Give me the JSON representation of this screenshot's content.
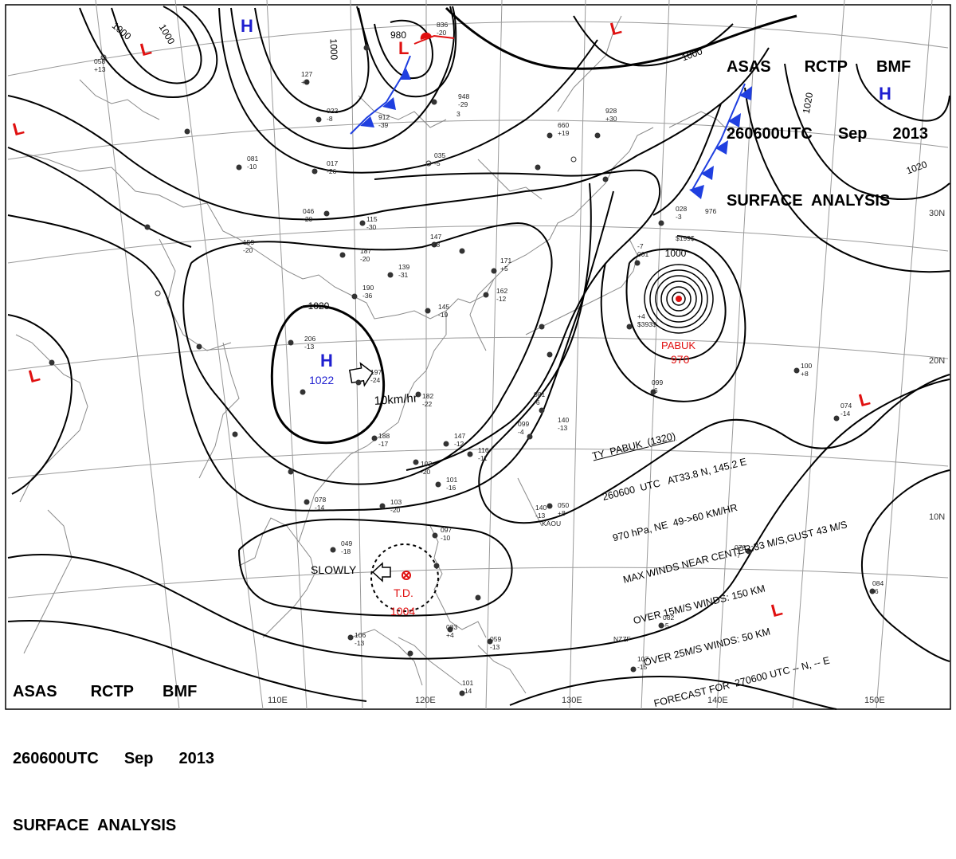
{
  "header_top": {
    "line1": [
      "ASAS",
      "RCTP",
      "BMF"
    ],
    "line2": [
      "260600UTC",
      "Sep",
      "2013"
    ],
    "line3": "SURFACE  ANALYSIS"
  },
  "header_bottom": {
    "line1": [
      "ASAS",
      "RCTP",
      "BMF"
    ],
    "line2": [
      "260600UTC",
      "Sep",
      "2013"
    ],
    "line3": "SURFACE  ANALYSIS"
  },
  "lon_labels": [
    "110E",
    "120E",
    "130E",
    "140E",
    "150E"
  ],
  "lat_labels": [
    "30N",
    "20N",
    "10N"
  ],
  "isobar_labels": [
    "1000",
    "1000",
    "1000",
    "1000",
    "1020",
    "1020",
    "1020",
    "1000",
    "980"
  ],
  "pressure_centers": [
    {
      "type": "H",
      "color": "#1f1fd0",
      "value": ""
    },
    {
      "type": "H",
      "color": "#1f1fd0",
      "value": ""
    },
    {
      "type": "H",
      "color": "#1f1fd0",
      "value": "1022"
    },
    {
      "type": "L",
      "color": "#e01010",
      "value": ""
    },
    {
      "type": "L",
      "color": "#e01010",
      "value": ""
    },
    {
      "type": "L",
      "color": "#e01010",
      "value": ""
    },
    {
      "type": "L",
      "color": "#e01010",
      "value": ""
    },
    {
      "type": "L",
      "color": "#e01010",
      "value": ""
    },
    {
      "type": "L",
      "color": "#e01010",
      "value": ""
    },
    {
      "type": "L",
      "color": "#e01010",
      "value": ""
    }
  ],
  "high_motion": "10km/hr",
  "typhoon": {
    "name": "PABUK",
    "pressure": "970",
    "color": "#e01010"
  },
  "depression": {
    "name": "T.D.",
    "pressure": "1004",
    "motion": "SLOWLY",
    "color": "#e01010"
  },
  "typhoon_info": [
    "TY  PABUK  (1320)",
    "260600  UTC   AT33.8 N, 145.2 E",
    "970 hPa, NE  49->60 KM/HR",
    "MAX WINDS NEAR CENTER:33 M/S,GUST 43 M/S",
    "OVER 15M/S WINDS: 150 KM",
    "OVER 25M/S WINDS: 50 KM",
    "FORECAST FOR  270600 UTC -- N, -- E"
  ],
  "station_values": [
    "836",
    "-20",
    "058",
    "+13",
    "127",
    "+4",
    "022",
    "-8",
    "912",
    "-39",
    "948",
    "-29",
    "3",
    "081",
    "-10",
    "017",
    "-26",
    "035",
    "-5",
    "046",
    "-20",
    "115",
    "-30",
    "147",
    "-38",
    "187",
    "-20",
    "139",
    "-31",
    "159",
    "-20",
    "171",
    "+5",
    "162",
    "-12",
    "190",
    "-36",
    "145",
    "-19",
    "206",
    "-13",
    "197",
    "-24",
    "182",
    "-22",
    "188",
    "-17",
    "147",
    "-12",
    "116",
    "-11",
    "102",
    "-20",
    "101",
    "-16",
    "103",
    "-20",
    "078",
    "-14",
    "049",
    "-18",
    "097",
    "-10",
    "099",
    "-4",
    "081",
    "-6",
    "140",
    "-13",
    "140",
    "-13",
    "050",
    "+8",
    "099",
    "-6",
    "100",
    "+8",
    "074",
    "-14",
    "078",
    "-7",
    "084",
    "-6",
    "082",
    "-5",
    "107",
    "-15",
    "101",
    "-14",
    "106",
    "-13",
    "083",
    "+4",
    "059",
    "-13",
    "660",
    "+19",
    "928",
    "+30",
    "028",
    "-3",
    "976",
    "-7",
    "001",
    "+4",
    "$393$",
    "$199$",
    "KAOU",
    "NZZF"
  ],
  "colors": {
    "isobar": "#000000",
    "coast": "#8a8a8a",
    "grid": "#9a9a9a",
    "high": "#1f1fd0",
    "low": "#e01010",
    "front": "#1f3fe0"
  }
}
